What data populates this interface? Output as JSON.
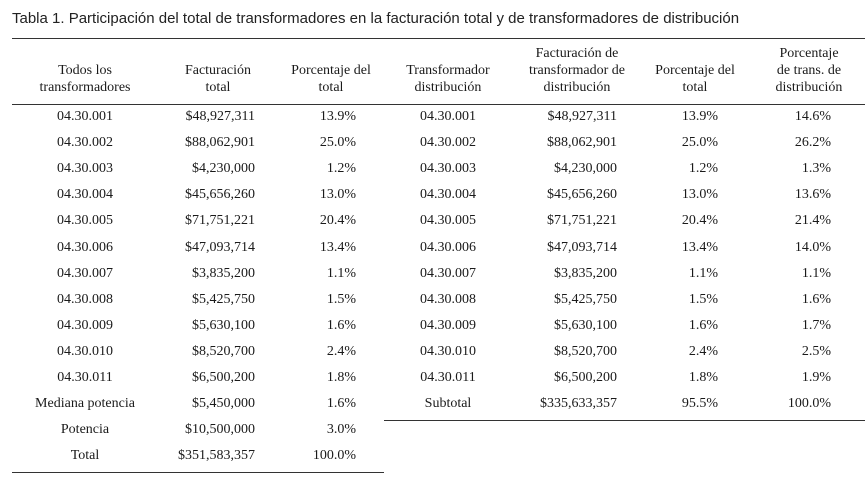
{
  "caption": "Tabla 1. Participación del total de transformadores en la facturación total y de transformadores de distribución",
  "headers": [
    [
      "Todos los",
      "transformadores"
    ],
    [
      "Facturación",
      "total"
    ],
    [
      "Porcentaje del",
      "total"
    ],
    [
      "Transformador",
      "distribución"
    ],
    [
      "Facturación de",
      "transformador de",
      "distribución"
    ],
    [
      "Porcentaje del",
      "total"
    ],
    [
      "Porcentaje",
      "de trans. de",
      "distribución"
    ]
  ],
  "left_rows": [
    [
      "04.30.001",
      "$48,927,311",
      "13.9%"
    ],
    [
      "04.30.002",
      "$88,062,901",
      "25.0%"
    ],
    [
      "04.30.003",
      "$4,230,000",
      "1.2%"
    ],
    [
      "04.30.004",
      "$45,656,260",
      "13.0%"
    ],
    [
      "04.30.005",
      "$71,751,221",
      "20.4%"
    ],
    [
      "04.30.006",
      "$47,093,714",
      "13.4%"
    ],
    [
      "04.30.007",
      "$3,835,200",
      "1.1%"
    ],
    [
      "04.30.008",
      "$5,425,750",
      "1.5%"
    ],
    [
      "04.30.009",
      "$5,630,100",
      "1.6%"
    ],
    [
      "04.30.010",
      "$8,520,700",
      "2.4%"
    ],
    [
      "04.30.011",
      "$6,500,200",
      "1.8%"
    ],
    [
      "Mediana potencia",
      "$5,450,000",
      "1.6%"
    ],
    [
      "Potencia",
      "$10,500,000",
      "3.0%"
    ],
    [
      "Total",
      "$351,583,357",
      "100.0%"
    ]
  ],
  "right_rows": [
    [
      "04.30.001",
      "$48,927,311",
      "13.9%",
      "14.6%"
    ],
    [
      "04.30.002",
      "$88,062,901",
      "25.0%",
      "26.2%"
    ],
    [
      "04.30.003",
      "$4,230,000",
      "1.2%",
      "1.3%"
    ],
    [
      "04.30.004",
      "$45,656,260",
      "13.0%",
      "13.6%"
    ],
    [
      "04.30.005",
      "$71,751,221",
      "20.4%",
      "21.4%"
    ],
    [
      "04.30.006",
      "$47,093,714",
      "13.4%",
      "14.0%"
    ],
    [
      "04.30.007",
      "$3,835,200",
      "1.1%",
      "1.1%"
    ],
    [
      "04.30.008",
      "$5,425,750",
      "1.5%",
      "1.6%"
    ],
    [
      "04.30.009",
      "$5,630,100",
      "1.6%",
      "1.7%"
    ],
    [
      "04.30.010",
      "$8,520,700",
      "2.4%",
      "2.5%"
    ],
    [
      "04.30.011",
      "$6,500,200",
      "1.8%",
      "1.9%"
    ],
    [
      "Subtotal",
      "$335,633,357",
      "95.5%",
      "100.0%"
    ]
  ]
}
